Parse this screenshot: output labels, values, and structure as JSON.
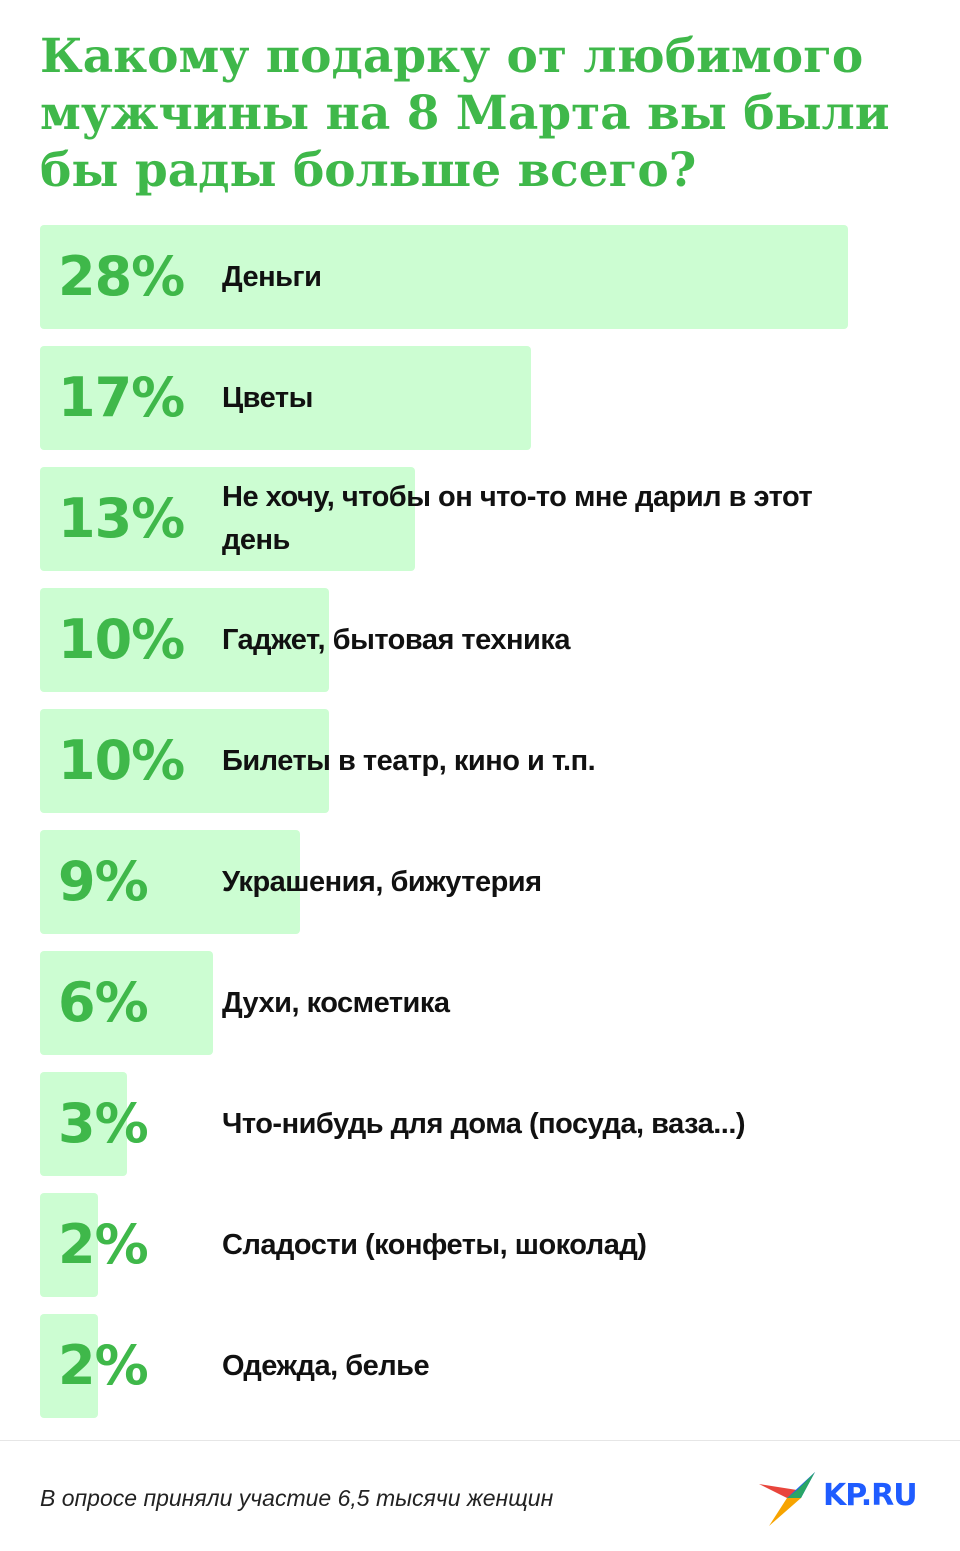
{
  "title": "Какому подарку от любимого мужчины на 8 Марта вы были бы рады больше всего?",
  "footnote": "В опросе приняли участие 6,5 тысячи женщин",
  "logo_text": "KP.RU",
  "colors": {
    "accent": "#3fb84a",
    "bar": "#ccfdd2",
    "logo": "#1f5cff"
  },
  "chart_data": {
    "type": "bar",
    "orientation": "horizontal",
    "categories": [
      "Деньги",
      "Цветы",
      "Не хочу, чтобы он что-то мне дарил в этот день",
      "Гаджет, бытовая техника",
      "Билеты в театр, кино и т.п.",
      "Украшения, бижутерия",
      "Духи, косметика",
      "Что-нибудь для дома (посуда, ваза...)",
      "Сладости (конфеты, шоколад)",
      "Одежда, белье"
    ],
    "values": [
      28,
      17,
      13,
      10,
      10,
      9,
      6,
      3,
      2,
      2
    ],
    "value_labels": [
      "28%",
      "17%",
      "13%",
      "10%",
      "10%",
      "9%",
      "6%",
      "3%",
      "2%",
      "2%"
    ]
  }
}
